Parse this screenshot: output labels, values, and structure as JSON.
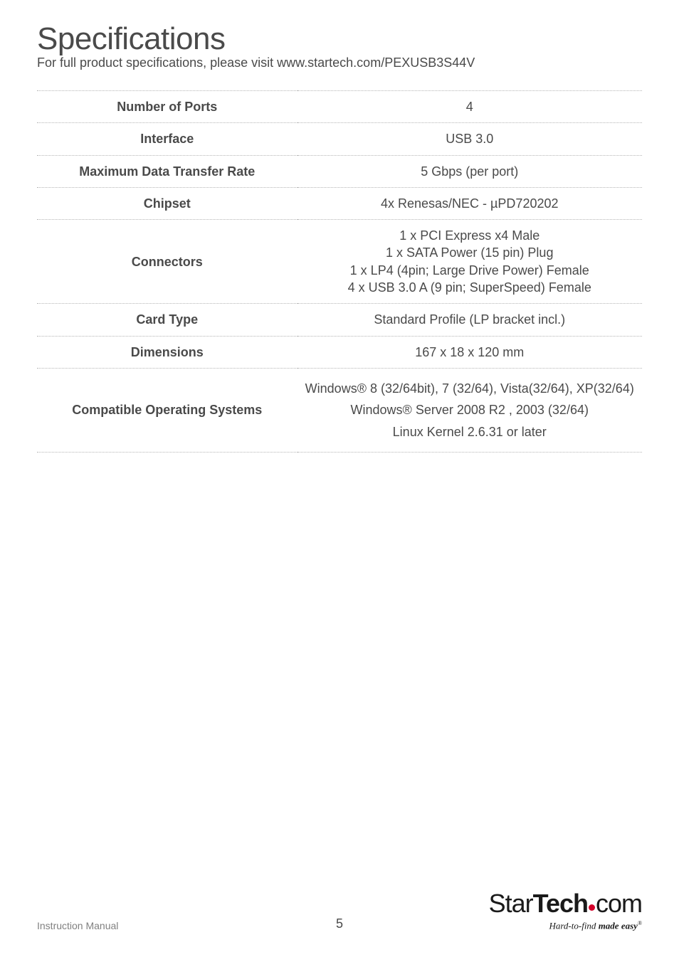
{
  "page": {
    "title": "Specifications",
    "subtitle": "For full product specifications, please visit www.startech.com/PEXUSB3S44V",
    "footer_left": "Instruction Manual",
    "page_number": "5",
    "logo_text_1": "Star",
    "logo_text_2": "Tech",
    "logo_text_3": "com",
    "logo_tagline_prefix": "Hard-to-find ",
    "logo_tagline_bold": "made easy",
    "logo_tagline_suffix": "®"
  },
  "spec_table": {
    "rows": [
      {
        "label": "Number of Ports",
        "value": "4"
      },
      {
        "label": "Interface",
        "value": "USB 3.0"
      },
      {
        "label": "Maximum Data Transfer Rate",
        "value": "5 Gbps (per port)"
      },
      {
        "label": "Chipset",
        "value": "4x Renesas/NEC - µPD720202"
      }
    ],
    "connectors": {
      "label": "Connectors",
      "lines": [
        "1 x PCI Express x4 Male",
        "1 x SATA Power (15 pin) Plug",
        "1 x LP4 (4pin; Large Drive Power) Female",
        "4 x USB 3.0 A (9 pin; SuperSpeed) Female"
      ]
    },
    "card_type": {
      "label": "Card Type",
      "value": "Standard Profile (LP bracket incl.)"
    },
    "dimensions": {
      "label": "Dimensions",
      "value": "167 x 18 x 120 mm"
    },
    "os": {
      "label": "Compatible Operating Systems",
      "blocks": [
        "Windows® 8 (32/64bit), 7 (32/64), Vista(32/64), XP(32/64)",
        "Windows® Server 2008 R2 , 2003 (32/64)",
        "Linux Kernel 2.6.31 or later"
      ]
    }
  },
  "colors": {
    "text": "#4a4a4a",
    "muted": "#808080",
    "dot": "#d4002a",
    "border": "#b5b5b5",
    "bg": "#ffffff"
  }
}
